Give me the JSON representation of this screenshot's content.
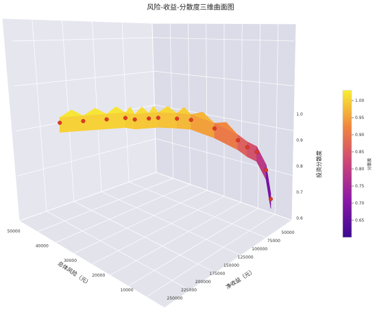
{
  "chart_data": {
    "type": "surface3d",
    "title": "风险-收益-分散度三维曲面图",
    "xlabel": "总体风险（元）",
    "ylabel": "净收益（元）",
    "zlabel": "投资分散度",
    "colorbar_label": "分散度",
    "colormap": "plasma",
    "xlim": [
      0,
      50000
    ],
    "ylim": [
      50000,
      250000
    ],
    "zlim": [
      0.6,
      1.0
    ],
    "x_ticks": [
      "50000",
      "40000",
      "30000",
      "20000",
      "10000"
    ],
    "y_ticks": [
      "50000",
      "75000",
      "100000",
      "125000",
      "150000",
      "175000",
      "200000",
      "225000",
      "250000"
    ],
    "z_ticks": [
      "0.6",
      "0.7",
      "0.8",
      "0.9",
      "1.0"
    ],
    "colorbar_ticks": [
      "0.65",
      "0.70",
      "0.75",
      "0.80",
      "0.85",
      "0.90",
      "0.95",
      "1.00"
    ],
    "colorbar_range": [
      0.6,
      1.03
    ],
    "grid": true,
    "pane_color": "#ececf4",
    "point_color": "#e23a26",
    "scatter_points": [
      {
        "risk": 5000,
        "ret": 225000,
        "div": 1.0
      },
      {
        "risk": 10000,
        "ret": 200000,
        "div": 1.0
      },
      {
        "risk": 15000,
        "ret": 185000,
        "div": 1.0
      },
      {
        "risk": 19000,
        "ret": 165000,
        "div": 1.0
      },
      {
        "risk": 21000,
        "ret": 145000,
        "div": 0.99
      },
      {
        "risk": 24000,
        "ret": 155000,
        "div": 0.99
      },
      {
        "risk": 26000,
        "ret": 140000,
        "div": 0.99
      },
      {
        "risk": 30000,
        "ret": 125000,
        "div": 0.98
      },
      {
        "risk": 33000,
        "ret": 115000,
        "div": 0.97
      },
      {
        "risk": 38000,
        "ret": 95000,
        "div": 0.93
      },
      {
        "risk": 43000,
        "ret": 85000,
        "div": 0.88
      },
      {
        "risk": 45000,
        "ret": 75000,
        "div": 0.85
      },
      {
        "risk": 47000,
        "ret": 70000,
        "div": 0.83
      },
      {
        "risk": 49000,
        "ret": 65000,
        "div": 0.75
      },
      {
        "risk": 50000,
        "ret": 50000,
        "div": 0.62
      }
    ]
  }
}
